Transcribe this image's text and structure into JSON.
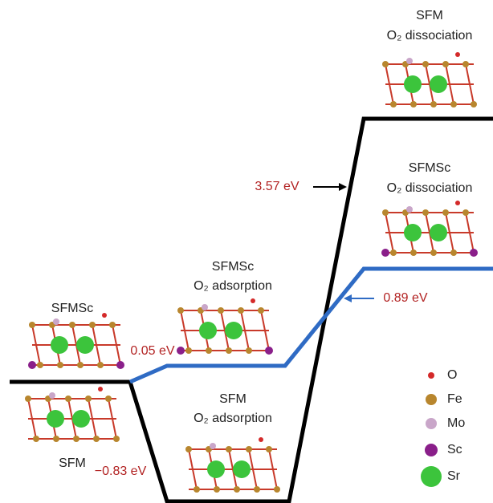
{
  "states": [
    {
      "label": "SFMSc"
    },
    {
      "label": "SFM"
    },
    {
      "label": "SFMSc",
      "step": "O₂ adsorption",
      "energy": "0.05 eV"
    },
    {
      "label": "SFM",
      "step": "O₂ adsorption",
      "energy": "−0.83 eV"
    },
    {
      "label": "SFM",
      "step": "O₂ dissociation",
      "energy": "3.57 eV"
    },
    {
      "label": "SFMSc",
      "step": "O₂ dissociation",
      "energy": "0.89 eV"
    }
  ],
  "legend": [
    {
      "label": "O",
      "color": "#d42a2a"
    },
    {
      "label": "Fe",
      "color": "#b8862e"
    },
    {
      "label": "Mo",
      "color": "#c9a6c9"
    },
    {
      "label": "Sc",
      "color": "#8a1f8a"
    },
    {
      "label": "Sr",
      "color": "#3cc43c"
    }
  ]
}
